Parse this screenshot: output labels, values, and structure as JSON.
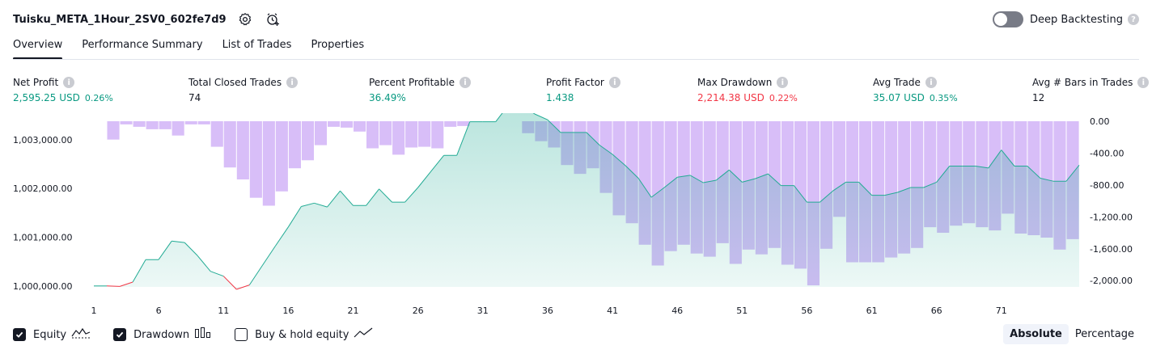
{
  "header": {
    "strategy_name": "Tuisku_META_1Hour_2SV0_602fe7d9",
    "icons": [
      "settings-icon",
      "add-alert-icon"
    ],
    "deep_backtesting_label": "Deep Backtesting",
    "deep_backtesting_enabled": false,
    "help_glyph": "?"
  },
  "tabs": [
    {
      "label": "Overview",
      "active": true
    },
    {
      "label": "Performance Summary",
      "active": false
    },
    {
      "label": "List of Trades",
      "active": false
    },
    {
      "label": "Properties",
      "active": false
    }
  ],
  "metrics": {
    "net_profit": {
      "label": "Net Profit",
      "value": "2,595.25 USD",
      "pct": "0.26%"
    },
    "total_closed_trades": {
      "label": "Total Closed Trades",
      "value": "74"
    },
    "percent_profitable": {
      "label": "Percent Profitable",
      "value": "36.49%"
    },
    "profit_factor": {
      "label": "Profit Factor",
      "value": "1.438"
    },
    "max_drawdown": {
      "label": "Max Drawdown",
      "value": "2,214.38 USD",
      "pct": "0.22%"
    },
    "avg_trade": {
      "label": "Avg Trade",
      "value": "35.07 USD",
      "pct": "0.35%"
    },
    "avg_bars_in_trades": {
      "label": "Avg # Bars in Trades",
      "value": "12"
    }
  },
  "info_glyph": "i",
  "colors": {
    "green": "#089981",
    "red": "#f23645",
    "equity_line": "#22ab94",
    "drawdown_bar": "#d1b3f7",
    "text": "#131722"
  },
  "chart_data": {
    "type": "area",
    "x_ticks": [
      1,
      6,
      11,
      16,
      21,
      26,
      31,
      36,
      41,
      46,
      51,
      56,
      61,
      66,
      71
    ],
    "y_left_ticks": [
      "1,003,000.00",
      "1,002,000.00",
      "1,001,000.00",
      "1,000,000.00"
    ],
    "y_left_values": [
      1003000,
      1002000,
      1001000,
      1000000
    ],
    "y_left_range": [
      999980,
      1003380
    ],
    "y_right_ticks": [
      "0.00",
      "-400.00",
      "-800.00",
      "-1,200.00",
      "-1,600.00",
      "-2,000.00"
    ],
    "y_right_values": [
      0,
      -400,
      -800,
      -1200,
      -1600,
      -2000
    ],
    "y_right_range": [
      -2150,
      0
    ],
    "series": [
      {
        "name": "Equity",
        "kind": "area-line",
        "values": [
          1000000,
          1000000,
          999990,
          1000080,
          1000540,
          1000540,
          1000920,
          1000890,
          1000620,
          1000300,
          1000200,
          999930,
          1000020,
          1000420,
          1000820,
          1001210,
          1001630,
          1001700,
          1001620,
          1001950,
          1001650,
          1001650,
          1001990,
          1001720,
          1001720,
          1002020,
          1002350,
          1002680,
          1002680,
          1003370,
          1003370,
          1003370,
          1003720,
          1003720,
          1003530,
          1003410,
          1003150,
          1003150,
          1003150,
          1002890,
          1002700,
          1002470,
          1002210,
          1001820,
          1002020,
          1002230,
          1002270,
          1002120,
          1002170,
          1002380,
          1002130,
          1002200,
          1002300,
          1002060,
          1002060,
          1001720,
          1001720,
          1001950,
          1002130,
          1002130,
          1001860,
          1001860,
          1001920,
          1002020,
          1002020,
          1002130,
          1002460,
          1002460,
          1002460,
          1002420,
          1002790,
          1002460,
          1002460,
          1002210,
          1002150,
          1002150,
          1002480
        ]
      },
      {
        "name": "Drawdown",
        "kind": "bar",
        "values": [
          0,
          -230,
          -40,
          -70,
          -100,
          -100,
          -180,
          -40,
          -40,
          -320,
          -580,
          -730,
          -960,
          -1060,
          -880,
          -590,
          -490,
          -300,
          -70,
          -80,
          -130,
          -340,
          -300,
          -420,
          -330,
          -320,
          -340,
          -70,
          -60,
          0,
          0,
          0,
          0,
          -150,
          -250,
          -330,
          -550,
          -660,
          -590,
          -900,
          -1180,
          -1280,
          -1550,
          -1810,
          -1630,
          -1550,
          -1660,
          -1700,
          -1530,
          -1790,
          -1610,
          -1670,
          -1590,
          -1800,
          -1850,
          -2060,
          -1600,
          -1200,
          -1770,
          -1770,
          -1770,
          -1710,
          -1660,
          -1590,
          -1330,
          -1400,
          -1310,
          -1280,
          -1330,
          -1370,
          -1160,
          -1410,
          -1430,
          -1460,
          -1610,
          -1480
        ]
      }
    ]
  },
  "legend": [
    {
      "label": "Equity",
      "checked": true,
      "icon": "equity-line-icon"
    },
    {
      "label": "Drawdown",
      "checked": true,
      "icon": "drawdown-bars-icon"
    },
    {
      "label": "Buy & hold equity",
      "checked": false,
      "icon": "buy-hold-line-icon"
    }
  ],
  "modes": [
    {
      "label": "Absolute",
      "active": true
    },
    {
      "label": "Percentage",
      "active": false
    }
  ]
}
